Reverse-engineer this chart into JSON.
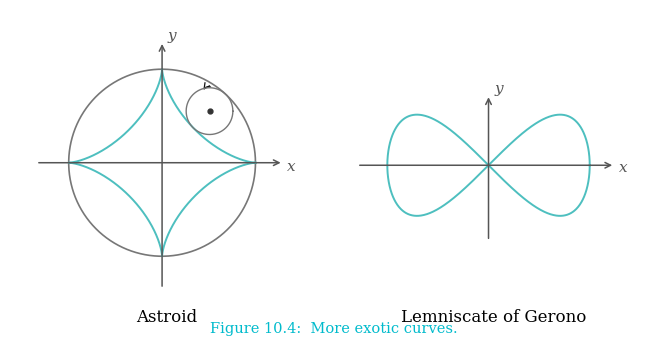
{
  "curve_color": "#4DBFBF",
  "axis_color": "#555555",
  "circle_color": "#777777",
  "dot_color": "#333333",
  "arrow_color": "#111111",
  "background_color": "#ffffff",
  "label1": "Astroid",
  "label2": "Lemniscate of Gerono",
  "fig_caption_color": "#00BBCC",
  "fig_caption": "Figure 10.4:  More exotic curves.",
  "label_fontsize": 12,
  "caption_fontsize": 10.5,
  "axis_label_fontsize": 11,
  "axis_label_fontstyle": "italic"
}
